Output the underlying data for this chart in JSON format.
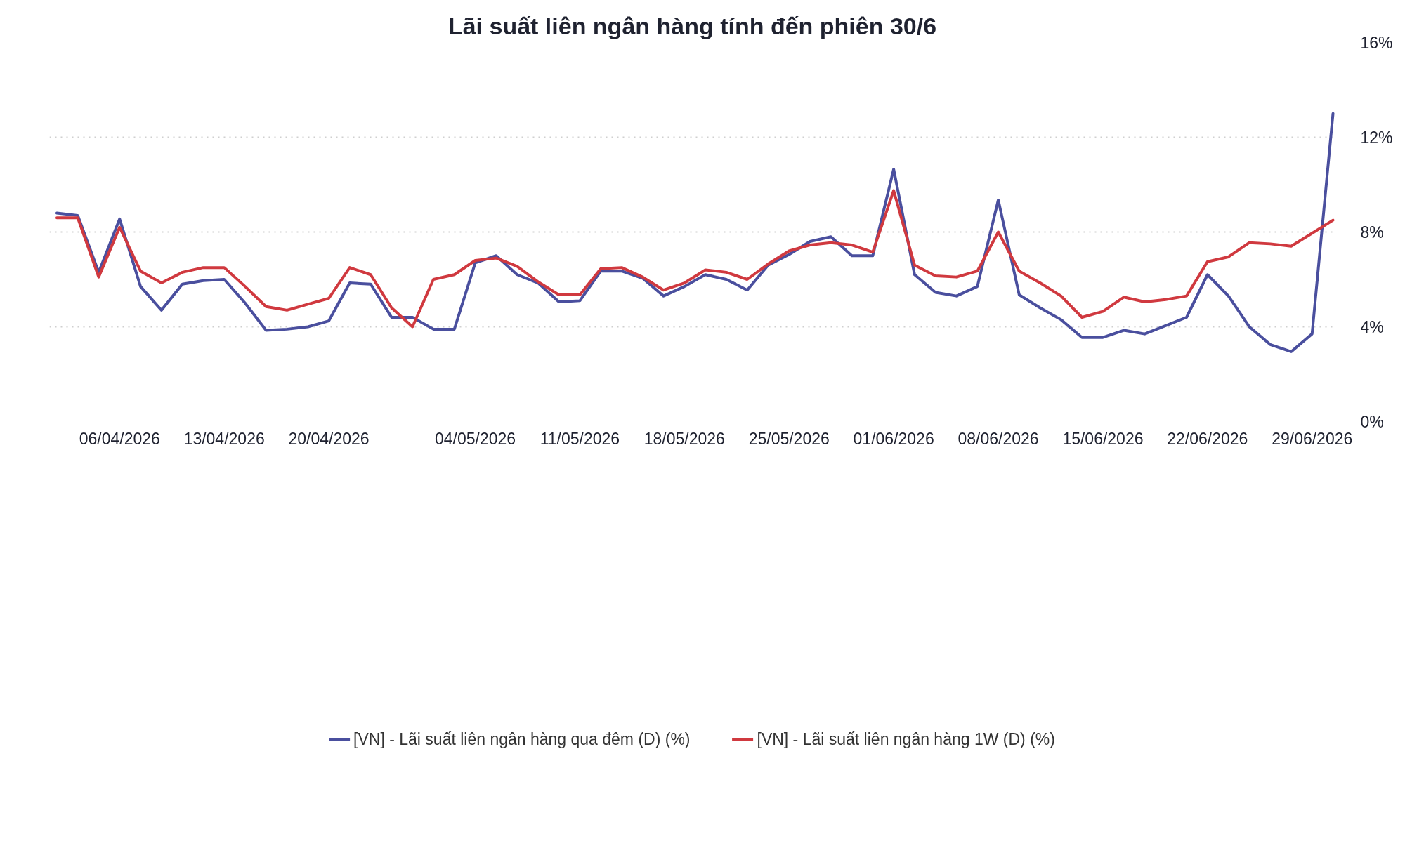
{
  "chart_data": {
    "type": "line",
    "title": "Lãi suất liên ngân hàng tính đến phiên 30/6",
    "categories": [
      null,
      null,
      null,
      "06/04/2026",
      null,
      null,
      null,
      null,
      "13/04/2026",
      null,
      null,
      null,
      null,
      "20/04/2026",
      null,
      null,
      null,
      null,
      null,
      null,
      "04/05/2026",
      null,
      null,
      null,
      null,
      "11/05/2026",
      null,
      null,
      null,
      null,
      "18/05/2026",
      null,
      null,
      null,
      null,
      "25/05/2026",
      null,
      null,
      null,
      null,
      "01/06/2026",
      null,
      null,
      null,
      null,
      "08/06/2026",
      null,
      null,
      null,
      null,
      "15/06/2026",
      null,
      null,
      null,
      null,
      "22/06/2026",
      null,
      null,
      null,
      null,
      "29/06/2026",
      null
    ],
    "series": [
      {
        "name": "[VN] - Lãi suất liên ngân hàng qua đêm (D) (%)",
        "color": "#4a4f9e",
        "values": [
          8.8,
          8.7,
          6.3,
          8.55,
          5.7,
          4.7,
          5.8,
          5.95,
          6.0,
          5.0,
          3.85,
          3.9,
          4.0,
          4.25,
          5.85,
          5.8,
          4.4,
          4.4,
          3.9,
          3.9,
          6.7,
          7.0,
          6.2,
          5.85,
          5.05,
          5.1,
          6.35,
          6.35,
          6.05,
          5.3,
          5.7,
          6.2,
          6.0,
          5.55,
          6.6,
          7.05,
          7.6,
          7.8,
          7.0,
          7.0,
          10.65,
          6.2,
          5.45,
          5.3,
          5.7,
          9.35,
          5.35,
          4.8,
          4.3,
          3.55,
          3.55,
          3.85,
          3.7,
          4.05,
          4.4,
          6.2,
          5.3,
          4.0,
          3.25,
          2.95,
          3.7,
          13.0
        ]
      },
      {
        "name": "[VN] - Lãi suất liên ngân hàng 1W (D) (%)",
        "color": "#d0393f",
        "values": [
          8.6,
          8.6,
          6.1,
          8.2,
          6.35,
          5.85,
          6.3,
          6.5,
          6.5,
          5.7,
          4.85,
          4.7,
          4.95,
          5.2,
          6.5,
          6.2,
          4.8,
          4.0,
          6.0,
          6.2,
          6.8,
          6.9,
          6.55,
          5.9,
          5.35,
          5.35,
          6.45,
          6.5,
          6.1,
          5.55,
          5.85,
          6.4,
          6.3,
          6.0,
          6.65,
          7.2,
          7.45,
          7.55,
          7.45,
          7.15,
          9.75,
          6.6,
          6.15,
          6.1,
          6.35,
          8.0,
          6.35,
          5.85,
          5.3,
          4.4,
          4.65,
          5.25,
          5.05,
          5.15,
          5.3,
          6.75,
          6.95,
          7.55,
          7.5,
          7.4,
          7.95,
          8.5
        ]
      }
    ],
    "ylim": [
      0,
      16
    ],
    "yticks": [
      {
        "value": 0,
        "label": "0%"
      },
      {
        "value": 4,
        "label": "4%"
      },
      {
        "value": 8,
        "label": "8%"
      },
      {
        "value": 12,
        "label": "12%"
      },
      {
        "value": 16,
        "label": "16%"
      }
    ],
    "grid": "y",
    "legend": "bottom",
    "marker": "none",
    "line_style": "solid"
  }
}
